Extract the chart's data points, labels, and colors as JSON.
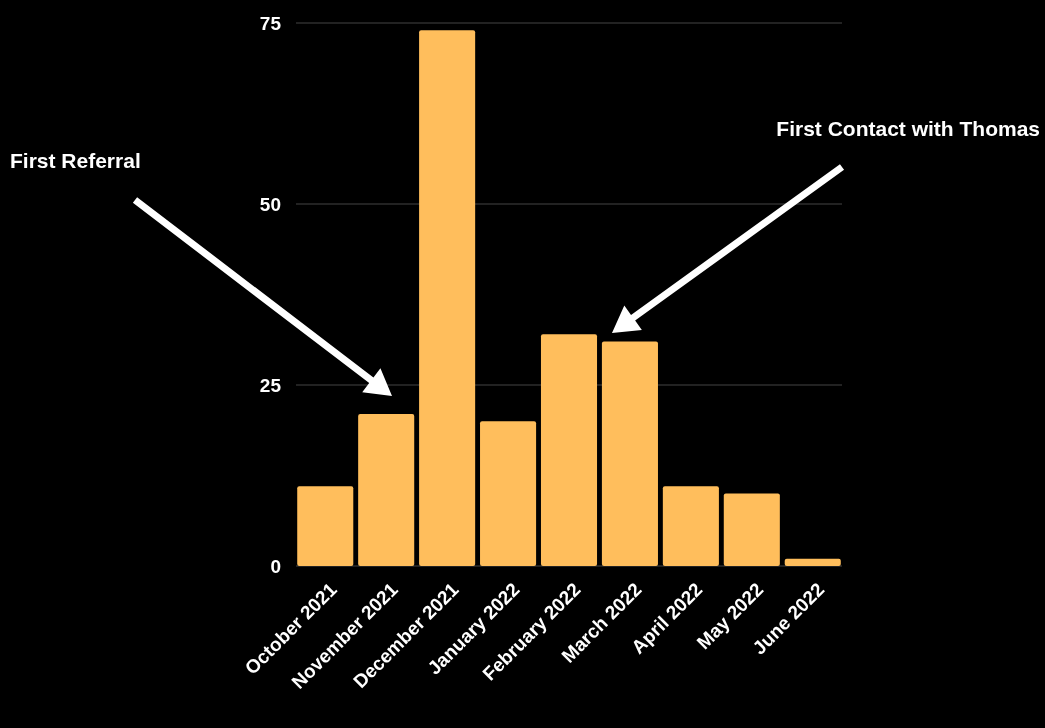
{
  "chart_data": {
    "type": "bar",
    "categories": [
      "October 2021",
      "November 2021",
      "December 2021",
      "January 2022",
      "February 2022",
      "March 2022",
      "April 2022",
      "May 2022",
      "June 2022"
    ],
    "values": [
      11,
      21,
      74,
      20,
      32,
      31,
      11,
      10,
      1
    ],
    "color": "#ffbe5c",
    "ylim": [
      0,
      75
    ],
    "yticks": [
      0,
      25,
      50,
      75
    ],
    "grid": "y",
    "annotations": [
      "First Referral",
      "First Contact with Thomas"
    ]
  }
}
